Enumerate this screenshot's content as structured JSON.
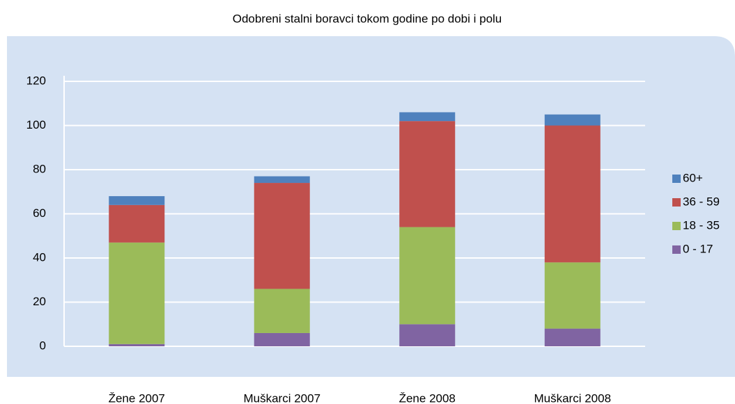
{
  "chart_data": {
    "type": "stacked_bar",
    "title": "Odobreni stalni boravci tokom godine po dobi i polu",
    "categories": [
      "Žene 2007",
      "Muškarci 2007",
      "Žene 2008",
      "Muškarci 2008"
    ],
    "series": [
      {
        "name": "0 - 17",
        "color": "#8064a2",
        "values": [
          1,
          6,
          10,
          8
        ]
      },
      {
        "name": "18 - 35",
        "color": "#9bbb59",
        "values": [
          46,
          20,
          44,
          30
        ]
      },
      {
        "name": "36 - 59",
        "color": "#c0504d",
        "values": [
          17,
          48,
          48,
          62
        ]
      },
      {
        "name": "60+",
        "color": "#4f81bd",
        "values": [
          4,
          3,
          4,
          5
        ]
      }
    ],
    "ylim": [
      0,
      120
    ],
    "yticks": [
      0,
      20,
      40,
      60,
      80,
      100,
      120
    ],
    "grid": true,
    "legend": "right"
  }
}
